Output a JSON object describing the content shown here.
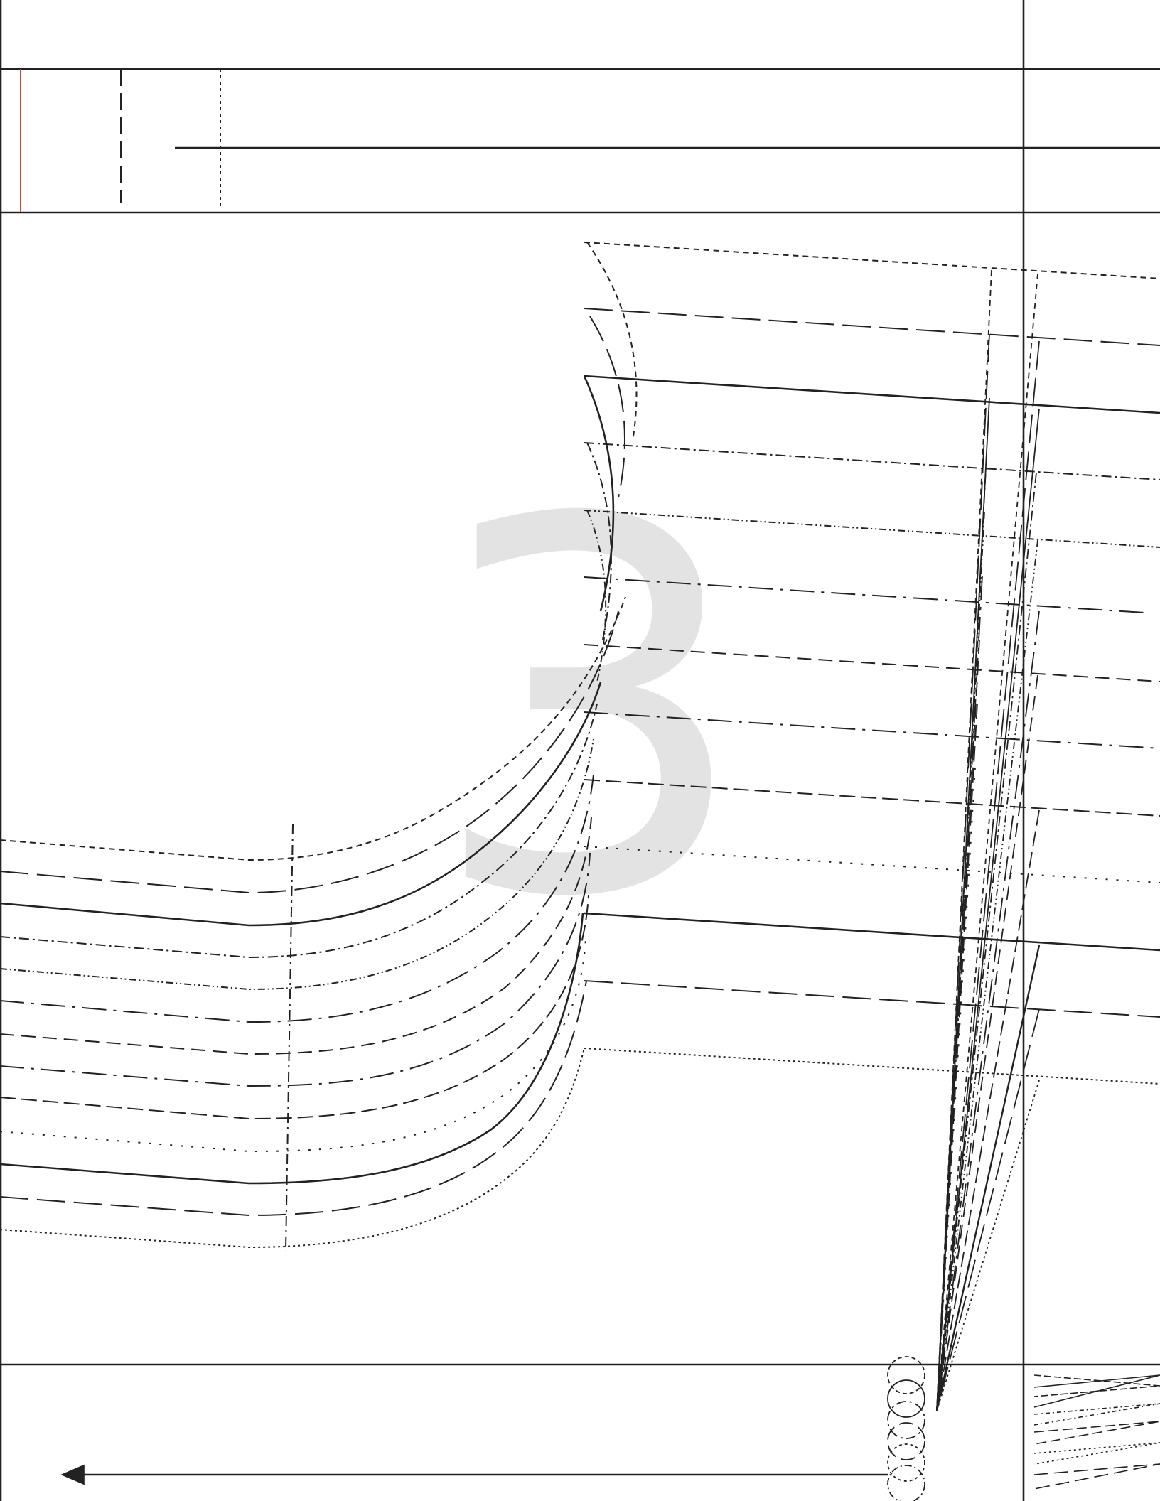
{
  "page": {
    "piece_number": "3",
    "accent_color": "#d9432f",
    "line_color": "#222222",
    "watermark_color": "#e3e3e3"
  },
  "size_lines": [
    "solid",
    "long-dash",
    "short-dash",
    "dash-dot",
    "dash-dot-dot",
    "dotted"
  ],
  "grainline": {
    "arrow_direction": "left"
  }
}
